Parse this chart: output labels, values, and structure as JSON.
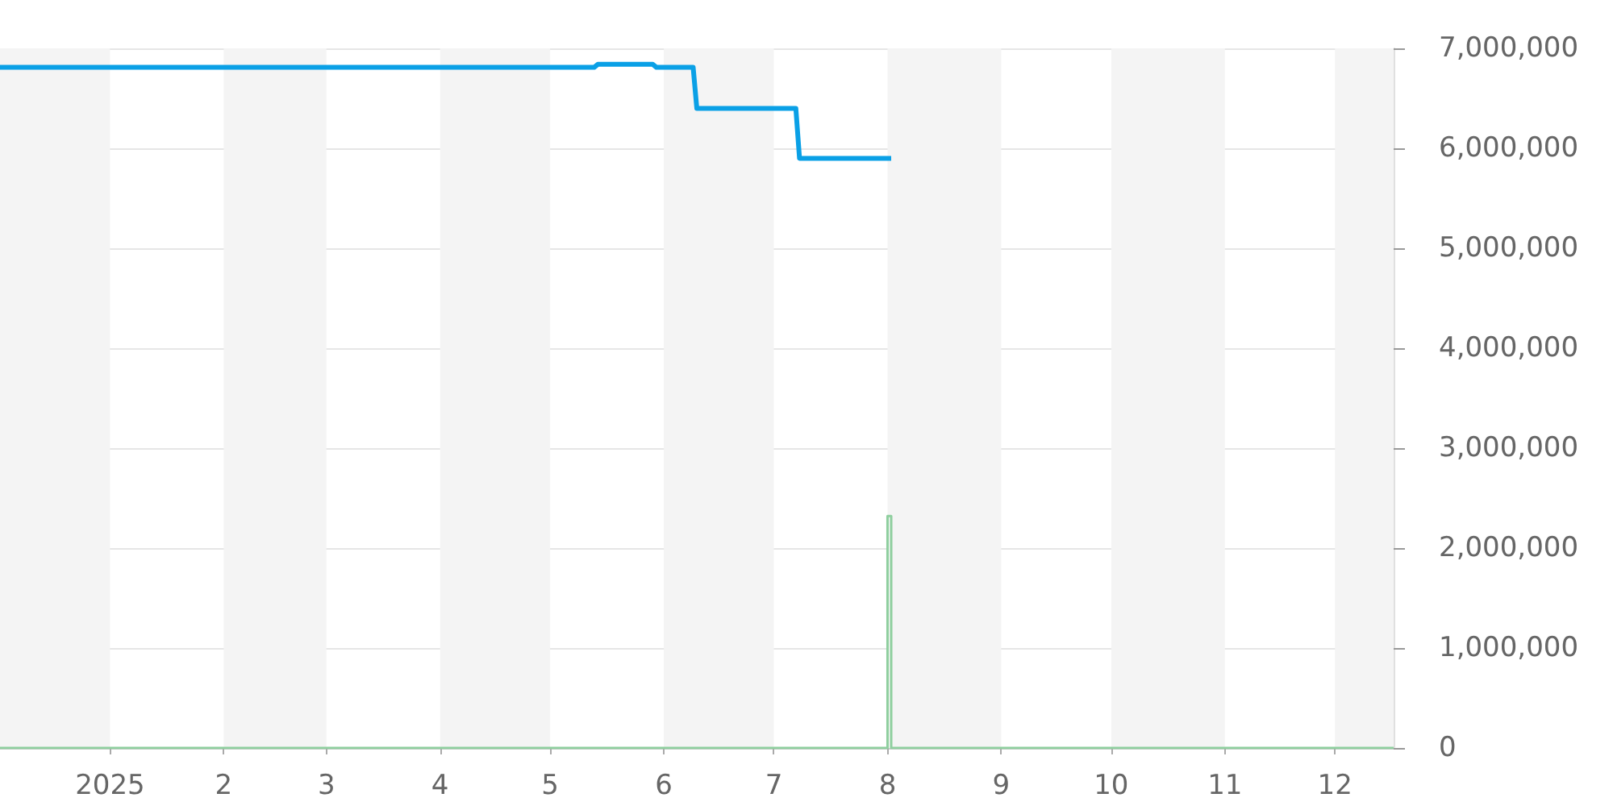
{
  "chart_data": {
    "type": "line",
    "series": [
      {
        "color": "#0aa0e6",
        "x": [
          "2024-12-02",
          "2025-05-13",
          "2025-05-14",
          "2025-05-29",
          "2025-05-30",
          "2025-06-09",
          "2025-06-10",
          "2025-07-07",
          "2025-07-08",
          "2025-08-02"
        ],
        "values": [
          6810000,
          6810000,
          6840000,
          6840000,
          6810000,
          6810000,
          6400000,
          6400000,
          5900000,
          5900000
        ]
      },
      {
        "type": "step",
        "color": "#8fcf9f",
        "x": [
          "2024-12-02",
          "2025-08-01",
          "2025-08-02",
          "2025-12-17"
        ],
        "values": [
          0,
          2320000,
          0,
          0
        ]
      }
    ],
    "xlim": [
      "2024-12-02",
      "2025-12-17"
    ],
    "xticks": [
      {
        "value": "2025-01-01",
        "label": "2025"
      },
      {
        "value": "2025-02-01",
        "label": "2"
      },
      {
        "value": "2025-03-01",
        "label": "3"
      },
      {
        "value": "2025-04-01",
        "label": "4"
      },
      {
        "value": "2025-05-01",
        "label": "5"
      },
      {
        "value": "2025-06-01",
        "label": "6"
      },
      {
        "value": "2025-07-01",
        "label": "7"
      },
      {
        "value": "2025-08-01",
        "label": "8"
      },
      {
        "value": "2025-09-01",
        "label": "9"
      },
      {
        "value": "2025-10-01",
        "label": "10"
      },
      {
        "value": "2025-11-01",
        "label": "11"
      },
      {
        "value": "2025-12-01",
        "label": "12"
      }
    ],
    "ylim": [
      0,
      7000000
    ],
    "yticks": [
      {
        "value": 0,
        "label": "0"
      },
      {
        "value": 1000000,
        "label": "1,000,000"
      },
      {
        "value": 2000000,
        "label": "2,000,000"
      },
      {
        "value": 3000000,
        "label": "3,000,000"
      },
      {
        "value": 4000000,
        "label": "4,000,000"
      },
      {
        "value": 5000000,
        "label": "5,000,000"
      },
      {
        "value": 6000000,
        "label": "6,000,000"
      },
      {
        "value": 7000000,
        "label": "7,000,000"
      }
    ],
    "grid": "y",
    "marker": "none",
    "bands": [
      {
        "axis": "x",
        "from": "2024-12-02",
        "to": "2025-01-01",
        "color": "#f4f4f4"
      },
      {
        "axis": "x",
        "from": "2025-02-01",
        "to": "2025-03-01",
        "color": "#f4f4f4"
      },
      {
        "axis": "x",
        "from": "2025-04-01",
        "to": "2025-05-01",
        "color": "#f4f4f4"
      },
      {
        "axis": "x",
        "from": "2025-06-01",
        "to": "2025-07-01",
        "color": "#f4f4f4"
      },
      {
        "axis": "x",
        "from": "2025-08-01",
        "to": "2025-09-01",
        "color": "#f4f4f4"
      },
      {
        "axis": "x",
        "from": "2025-10-01",
        "to": "2025-11-01",
        "color": "#f4f4f4"
      },
      {
        "axis": "x",
        "from": "2025-12-01",
        "to": "2025-12-17",
        "color": "#f4f4f4"
      }
    ]
  }
}
